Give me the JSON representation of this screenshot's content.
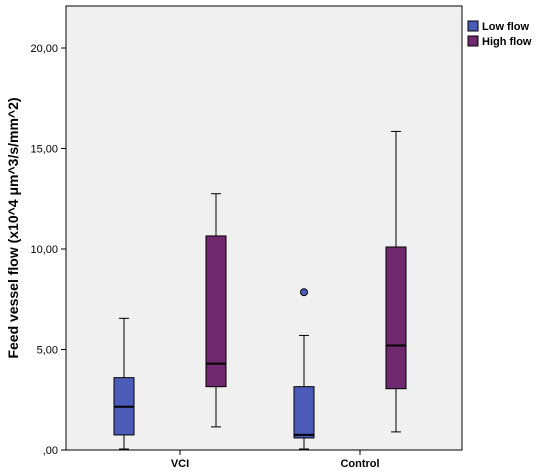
{
  "chart_data": {
    "type": "boxplot",
    "ylabel": "Feed vessel flow (x10^4 μm^3/s/mm^2)",
    "xlabel": "",
    "ylim": [
      0,
      23
    ],
    "yticks": [
      {
        "value": 0,
        "label": ",00"
      },
      {
        "value": 5,
        "label": "5,00"
      },
      {
        "value": 10,
        "label": "10,00"
      },
      {
        "value": 15,
        "label": "15,00"
      },
      {
        "value": 20,
        "label": "20,00"
      }
    ],
    "categories": [
      "VCI",
      "Control"
    ],
    "series": [
      {
        "name": "Low flow",
        "color": "#4a5cb8",
        "boxes": [
          {
            "min": 0.05,
            "q1": 0.75,
            "median": 2.15,
            "q3": 3.6,
            "max": 6.55,
            "outliers": []
          },
          {
            "min": 0.05,
            "q1": 0.6,
            "median": 0.75,
            "q3": 3.15,
            "max": 5.7,
            "outliers": [
              7.85
            ]
          }
        ]
      },
      {
        "name": "High flow",
        "color": "#70296f",
        "boxes": [
          {
            "min": 1.15,
            "q1": 3.15,
            "median": 4.3,
            "q3": 10.65,
            "max": 12.75,
            "outliers": []
          },
          {
            "min": 0.9,
            "q1": 3.05,
            "median": 5.2,
            "q3": 10.1,
            "max": 15.85,
            "outliers": []
          }
        ]
      }
    ],
    "grid": false,
    "legend": "top-right",
    "background": "#f0f0f0"
  }
}
